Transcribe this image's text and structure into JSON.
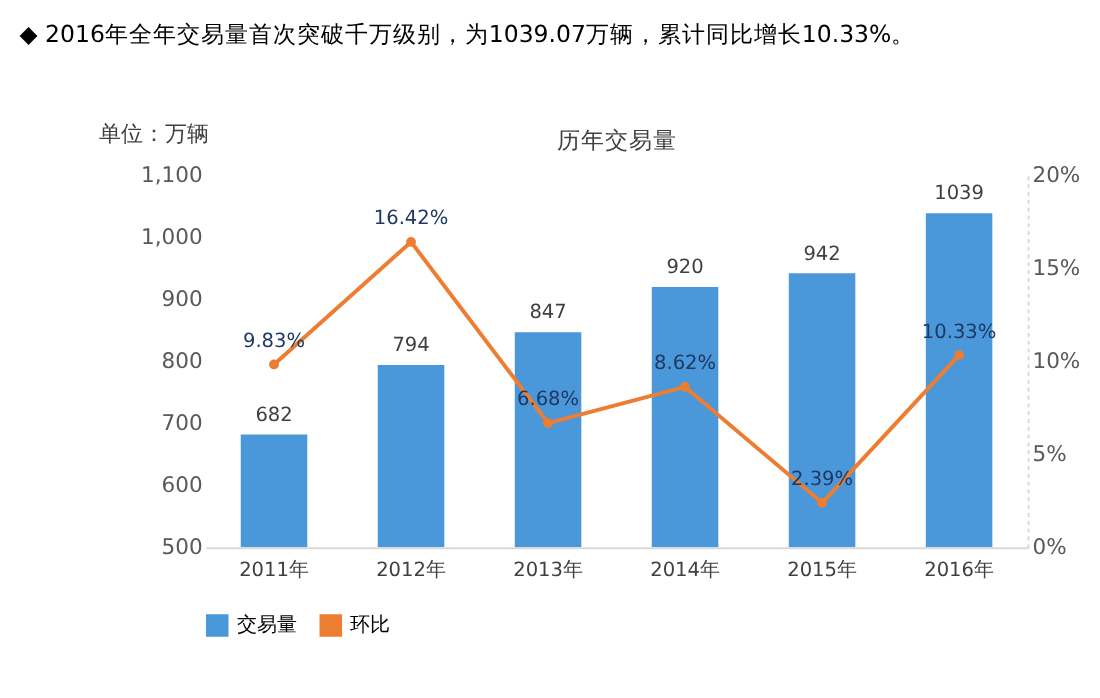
{
  "chart_data": {
    "type": "bar",
    "title": "◆ 2016年全年交易量首次突破千万级别，为1039.07万辆，累计同比增长10.33%。",
    "subtitle": "历年交易量",
    "ylabel": "单位：万辆",
    "categories": [
      "2011年",
      "2012年",
      "2013年",
      "2014年",
      "2015年",
      "2016年"
    ],
    "series": [
      {
        "name": "交易量",
        "color": "#4a98da",
        "values": [
          682,
          794,
          847,
          920,
          942,
          1039
        ],
        "value_labels": [
          "682",
          "794",
          "847",
          "920",
          "942",
          "1039"
        ]
      },
      {
        "name": "环比",
        "type": "line",
        "axis": "y2",
        "color": "#ed7d31",
        "values": [
          9.83,
          16.42,
          6.68,
          8.62,
          2.39,
          10.33
        ],
        "value_labels": [
          "9.83%",
          "16.42%",
          "6.68%",
          "8.62%",
          "2.39%",
          "10.33%"
        ]
      }
    ],
    "ylim": [
      500,
      1100
    ],
    "yticks": [
      500,
      600,
      700,
      800,
      900,
      {
        "value": 1000,
        "label": "1,000"
      },
      {
        "value": 1100,
        "label": "1,100"
      }
    ],
    "y2lim": [
      0,
      20
    ],
    "y2ticks": [
      {
        "value": 0,
        "label": "0%"
      },
      {
        "value": 5,
        "label": "5%"
      },
      {
        "value": 10,
        "label": "10%"
      },
      {
        "value": 15,
        "label": "15%"
      },
      {
        "value": 20,
        "label": "20%"
      }
    ],
    "grid": false,
    "legend": "bottom",
    "marker": "circle",
    "line_style": "solid"
  }
}
